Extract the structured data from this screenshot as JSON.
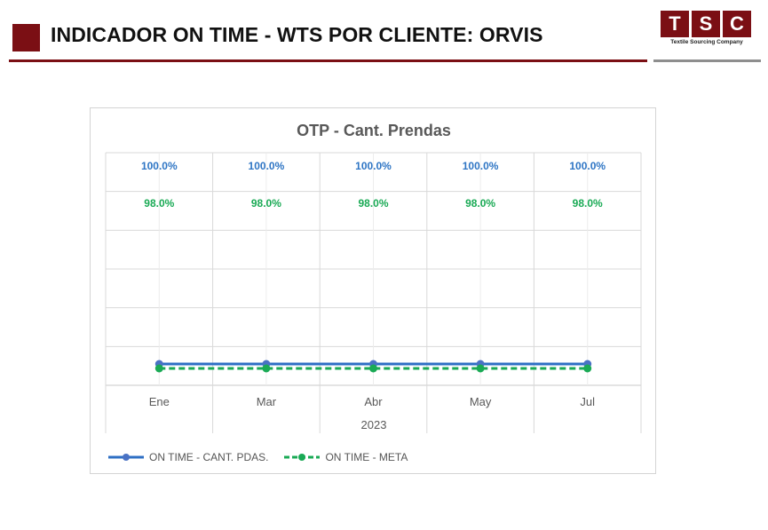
{
  "header": {
    "title": "INDICADOR ON TIME - WTS POR CLIENTE: ORVIS",
    "accent_color": "#7b0f14"
  },
  "logo": {
    "letters": [
      "T",
      "S",
      "C"
    ],
    "tagline": "Textile Sourcing Company"
  },
  "chart_data": {
    "type": "line",
    "title": "OTP - Cant. Prendas",
    "categories": [
      "Ene",
      "Mar",
      "Abr",
      "May",
      "Jul"
    ],
    "group_label": "2023",
    "series": [
      {
        "name": "ON TIME - CANT. PDAS.",
        "values": [
          100.0,
          100.0,
          100.0,
          100.0,
          100.0
        ],
        "labels": [
          "100.0%",
          "100.0%",
          "100.0%",
          "100.0%",
          "100.0%"
        ],
        "color": "#2e6fc4",
        "style": "solid"
      },
      {
        "name": "ON TIME - META",
        "values": [
          98.0,
          98.0,
          98.0,
          98.0,
          98.0
        ],
        "labels": [
          "98.0%",
          "98.0%",
          "98.0%",
          "98.0%",
          "98.0%"
        ],
        "color": "#1aaa55",
        "style": "dashed"
      }
    ],
    "grid": true,
    "legend_position": "bottom-left"
  }
}
